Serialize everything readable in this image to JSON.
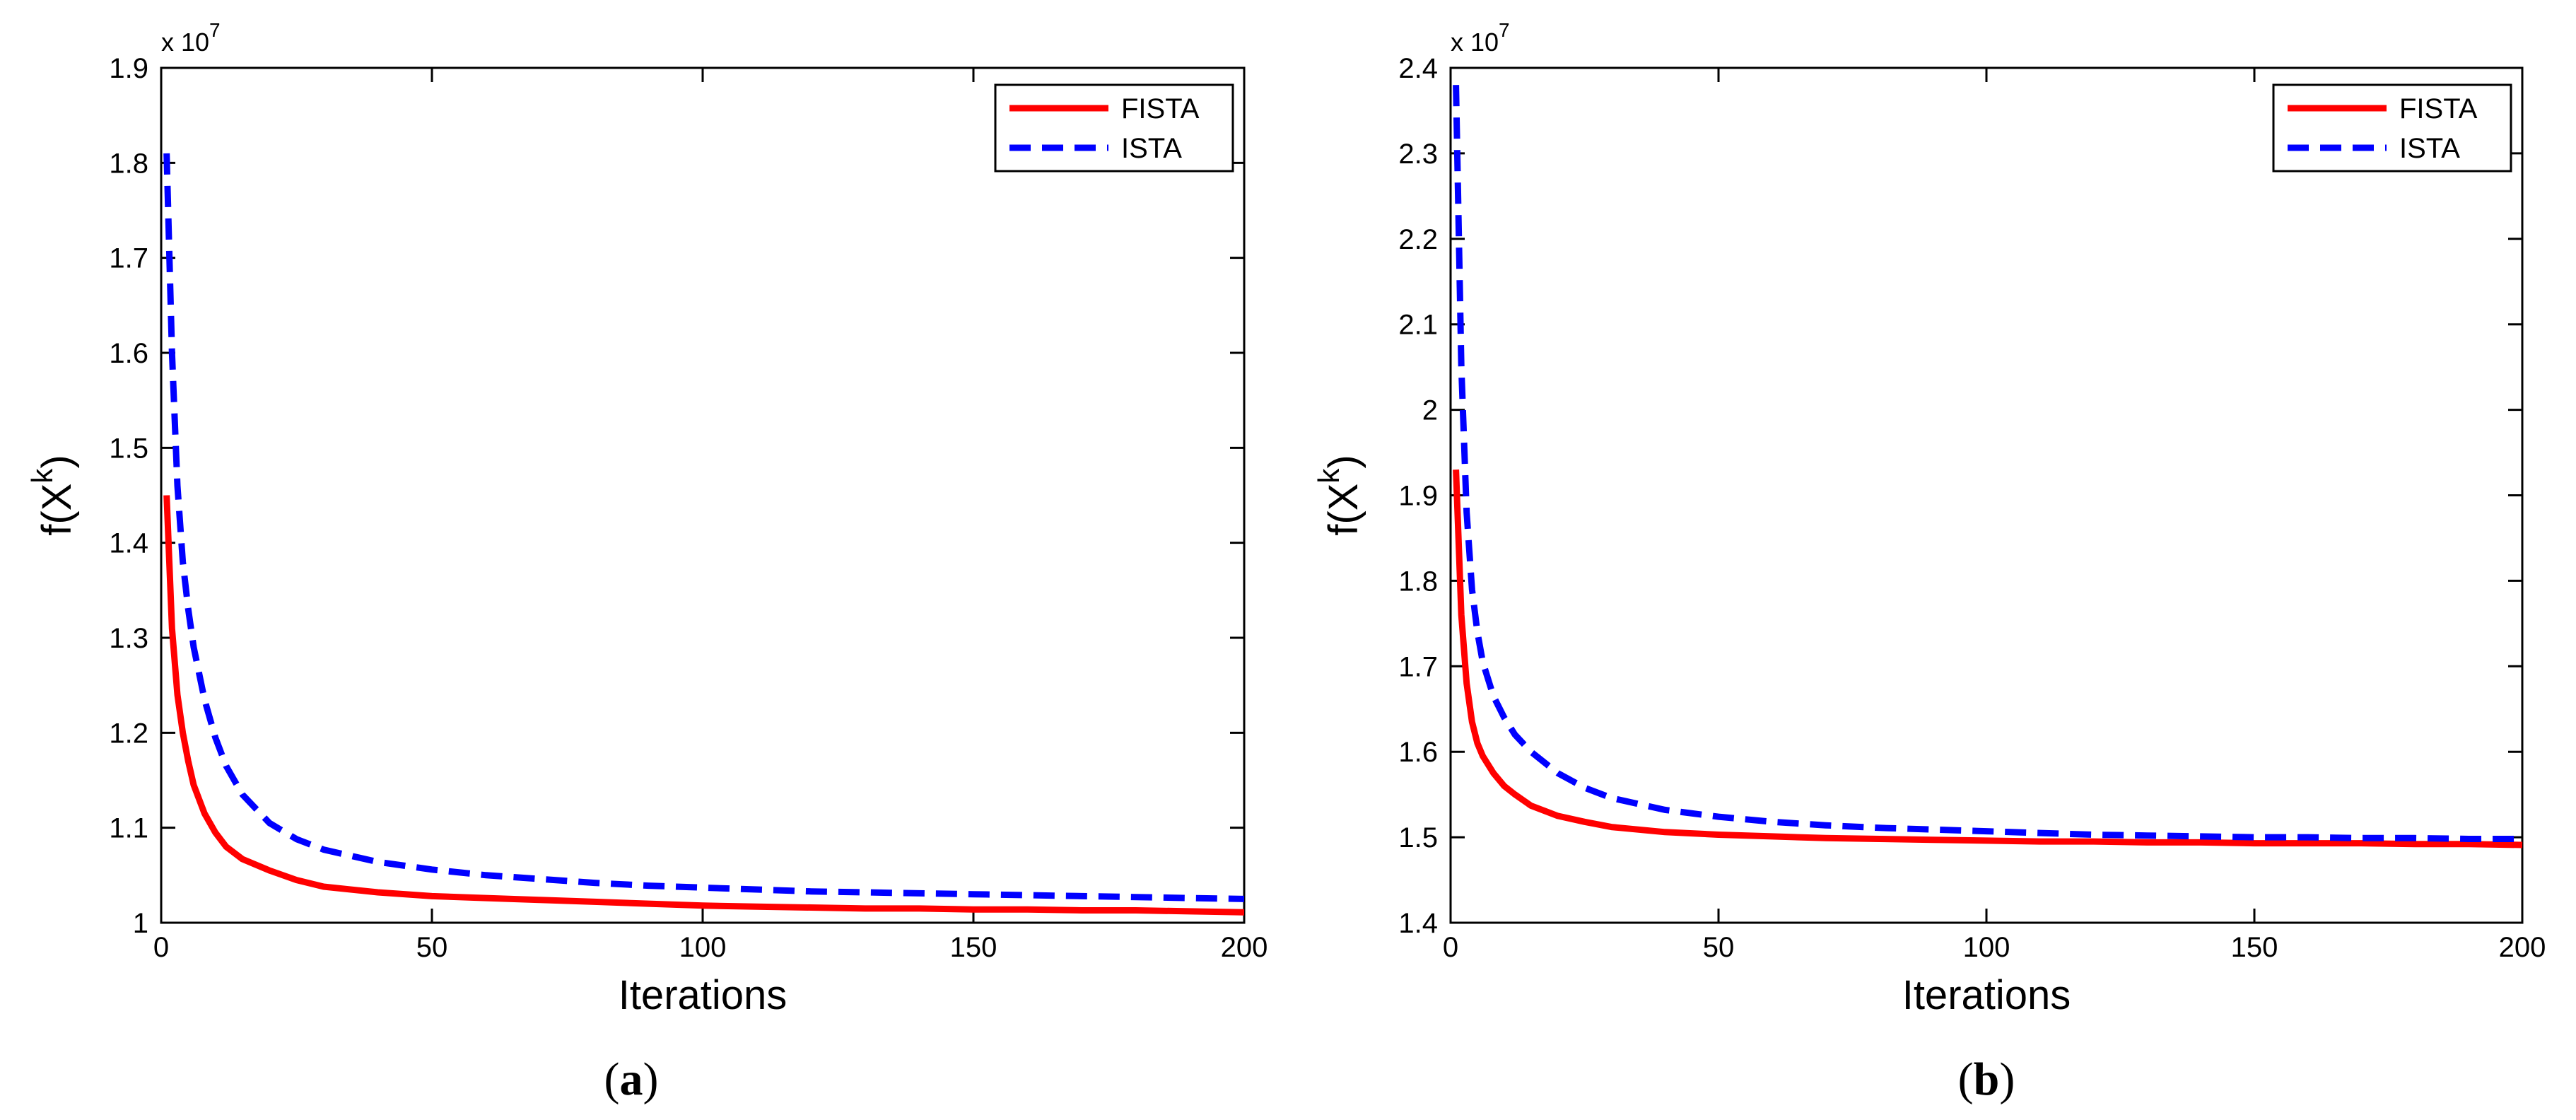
{
  "chart_data": [
    {
      "type": "line",
      "panel_label_prefix": "(",
      "panel_label_letter": "a",
      "panel_label_suffix": ")",
      "xlabel": "Iterations",
      "ylabel": "f(X",
      "ylabel_sup": "k",
      "ylabel_close": ")",
      "multiplier_base": "x 10",
      "multiplier_exp": "7",
      "xlim": [
        0,
        200
      ],
      "ylim": [
        1.0,
        1.9
      ],
      "xticks": [
        0,
        50,
        100,
        150,
        200
      ],
      "xtick_labels": [
        "0",
        "50",
        "100",
        "150",
        "200"
      ],
      "yticks": [
        1.0,
        1.1,
        1.2,
        1.3,
        1.4,
        1.5,
        1.6,
        1.7,
        1.8,
        1.9
      ],
      "ytick_labels": [
        "1",
        "1.1",
        "1.2",
        "1.3",
        "1.4",
        "1.5",
        "1.6",
        "1.7",
        "1.8",
        "1.9"
      ],
      "grid": false,
      "legend_position": "top-right",
      "series": [
        {
          "name": "FISTA",
          "color": "#ff0000",
          "dash": "solid",
          "x": [
            1,
            2,
            3,
            4,
            5,
            6,
            8,
            10,
            12,
            15,
            20,
            25,
            30,
            40,
            50,
            60,
            70,
            80,
            90,
            100,
            110,
            120,
            130,
            140,
            150,
            160,
            170,
            180,
            190,
            200
          ],
          "y": [
            1.45,
            1.31,
            1.24,
            1.2,
            1.17,
            1.145,
            1.115,
            1.095,
            1.08,
            1.067,
            1.055,
            1.045,
            1.038,
            1.032,
            1.028,
            1.026,
            1.024,
            1.022,
            1.02,
            1.018,
            1.017,
            1.016,
            1.015,
            1.015,
            1.014,
            1.014,
            1.013,
            1.013,
            1.012,
            1.011
          ]
        },
        {
          "name": "ISTA",
          "color": "#0000ff",
          "dash": "dashed",
          "x": [
            1,
            2,
            3,
            4,
            5,
            6,
            8,
            10,
            12,
            15,
            20,
            25,
            30,
            40,
            50,
            60,
            70,
            80,
            90,
            100,
            110,
            120,
            130,
            140,
            150,
            160,
            170,
            180,
            190,
            200
          ],
          "y": [
            1.81,
            1.6,
            1.46,
            1.38,
            1.33,
            1.29,
            1.235,
            1.195,
            1.165,
            1.135,
            1.105,
            1.088,
            1.077,
            1.064,
            1.056,
            1.05,
            1.046,
            1.042,
            1.039,
            1.037,
            1.035,
            1.033,
            1.032,
            1.031,
            1.03,
            1.029,
            1.028,
            1.027,
            1.026,
            1.025
          ]
        }
      ]
    },
    {
      "type": "line",
      "panel_label_prefix": "(",
      "panel_label_letter": "b",
      "panel_label_suffix": ")",
      "xlabel": "Iterations",
      "ylabel": "f(X",
      "ylabel_sup": "k",
      "ylabel_close": ")",
      "multiplier_base": "x 10",
      "multiplier_exp": "7",
      "xlim": [
        0,
        200
      ],
      "ylim": [
        1.4,
        2.4
      ],
      "xticks": [
        0,
        50,
        100,
        150,
        200
      ],
      "xtick_labels": [
        "0",
        "50",
        "100",
        "150",
        "200"
      ],
      "yticks": [
        1.4,
        1.5,
        1.6,
        1.7,
        1.8,
        1.9,
        2.0,
        2.1,
        2.2,
        2.3,
        2.4
      ],
      "ytick_labels": [
        "1.4",
        "1.5",
        "1.6",
        "1.7",
        "1.8",
        "1.9",
        "2",
        "2.1",
        "2.2",
        "2.3",
        "2.4"
      ],
      "grid": false,
      "legend_position": "top-right",
      "series": [
        {
          "name": "FISTA",
          "color": "#ff0000",
          "dash": "solid",
          "x": [
            1,
            2,
            3,
            4,
            5,
            6,
            8,
            10,
            12,
            15,
            20,
            25,
            30,
            40,
            50,
            60,
            70,
            80,
            90,
            100,
            110,
            120,
            130,
            140,
            150,
            160,
            170,
            180,
            190,
            200
          ],
          "y": [
            1.93,
            1.76,
            1.68,
            1.635,
            1.61,
            1.595,
            1.575,
            1.56,
            1.55,
            1.537,
            1.525,
            1.518,
            1.512,
            1.506,
            1.503,
            1.501,
            1.499,
            1.498,
            1.497,
            1.496,
            1.495,
            1.495,
            1.494,
            1.494,
            1.493,
            1.493,
            1.493,
            1.492,
            1.492,
            1.491
          ]
        },
        {
          "name": "ISTA",
          "color": "#0000ff",
          "dash": "dashed",
          "x": [
            1,
            2,
            3,
            4,
            5,
            6,
            8,
            10,
            12,
            15,
            20,
            25,
            30,
            40,
            50,
            60,
            70,
            80,
            90,
            100,
            110,
            120,
            130,
            140,
            150,
            160,
            170,
            180,
            190,
            200
          ],
          "y": [
            2.38,
            2.05,
            1.88,
            1.79,
            1.74,
            1.705,
            1.665,
            1.64,
            1.62,
            1.6,
            1.575,
            1.558,
            1.546,
            1.532,
            1.524,
            1.518,
            1.514,
            1.511,
            1.509,
            1.507,
            1.505,
            1.503,
            1.502,
            1.501,
            1.5,
            1.5,
            1.499,
            1.499,
            1.498,
            1.498
          ]
        }
      ]
    }
  ]
}
